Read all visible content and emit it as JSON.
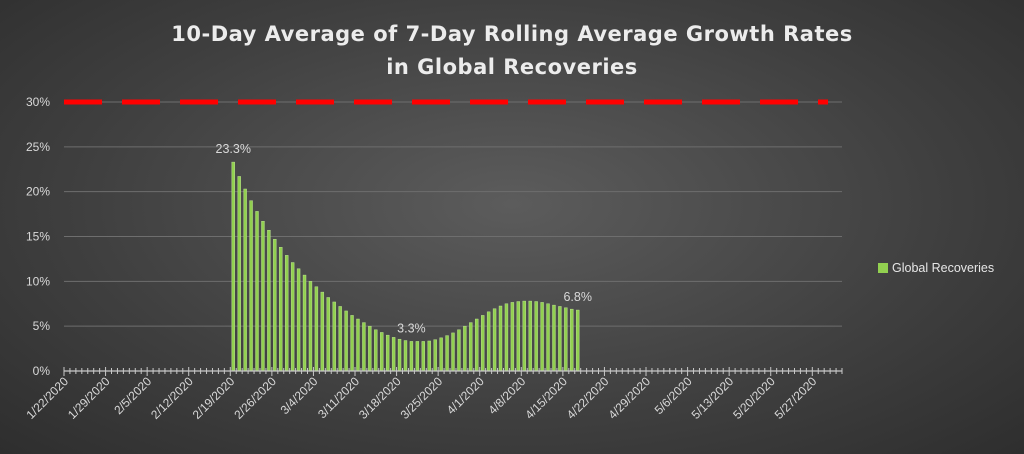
{
  "chart_data": {
    "type": "bar",
    "title": "10-Day Average of 7-Day Rolling Average Growth Rates",
    "subtitle": "in Global Recoveries",
    "xlabel": "",
    "ylabel": "",
    "ylim": [
      0,
      30
    ],
    "y_ticks": [
      "0%",
      "5%",
      "10%",
      "15%",
      "20%",
      "25%",
      "30%"
    ],
    "x_tick_labels": [
      "1/22/2020",
      "1/29/2020",
      "2/5/2020",
      "2/12/2020",
      "2/19/2020",
      "2/26/2020",
      "3/4/2020",
      "3/11/2020",
      "3/18/2020",
      "3/25/2020",
      "4/1/2020",
      "4/8/2020",
      "4/15/2020",
      "4/22/2020",
      "4/29/2020",
      "5/6/2020",
      "5/13/2020",
      "5/20/2020",
      "5/27/2020"
    ],
    "x_start": "1/22/2020",
    "x_end": "5/31/2020",
    "threshold": {
      "value": 30,
      "color": "#ff0000",
      "style": "dashed"
    },
    "grid": true,
    "legend_position": "right",
    "series": [
      {
        "name": "Global Recoveries",
        "color": "#92d050",
        "start_date": "2/19/2020",
        "values": [
          23.3,
          21.7,
          20.3,
          19.0,
          17.8,
          16.7,
          15.7,
          14.7,
          13.8,
          12.9,
          12.1,
          11.4,
          10.7,
          10.0,
          9.4,
          8.8,
          8.2,
          7.7,
          7.2,
          6.7,
          6.2,
          5.8,
          5.4,
          5.0,
          4.6,
          4.3,
          4.0,
          3.75,
          3.55,
          3.4,
          3.3,
          3.3,
          3.3,
          3.35,
          3.5,
          3.7,
          3.95,
          4.25,
          4.6,
          5.0,
          5.4,
          5.8,
          6.2,
          6.6,
          6.95,
          7.25,
          7.5,
          7.65,
          7.75,
          7.8,
          7.8,
          7.75,
          7.65,
          7.5,
          7.35,
          7.2,
          7.05,
          6.9,
          6.8
        ]
      }
    ],
    "data_labels": [
      {
        "index": 0,
        "text": "23.3%"
      },
      {
        "index": 30,
        "text": "3.3%"
      },
      {
        "index": 58,
        "text": "6.8%"
      }
    ]
  }
}
